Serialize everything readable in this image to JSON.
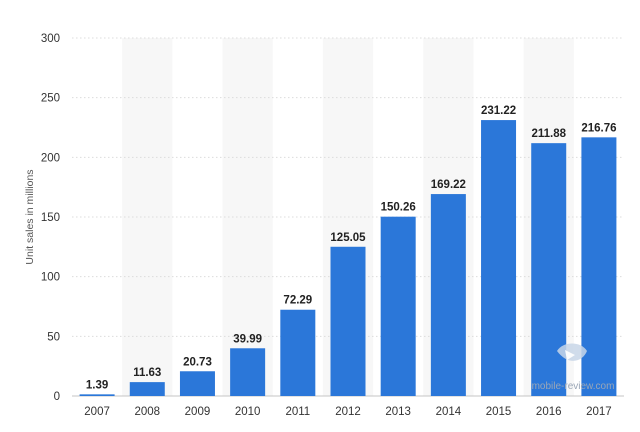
{
  "chart_data": {
    "type": "bar",
    "categories": [
      "2007",
      "2008",
      "2009",
      "2010",
      "2011",
      "2012",
      "2013",
      "2014",
      "2015",
      "2016",
      "2017"
    ],
    "values": [
      1.39,
      11.63,
      20.73,
      39.99,
      72.29,
      125.05,
      150.26,
      169.22,
      231.22,
      211.88,
      216.76
    ],
    "data_labels": [
      "1.39",
      "11.63",
      "20.73",
      "39.99",
      "72.29",
      "125.05",
      "150.26",
      "169.22",
      "231.22",
      "211.88",
      "216.76"
    ],
    "ylabel": "Unit sales in millions",
    "xlabel": "",
    "title": "",
    "ylim": [
      0,
      300
    ],
    "yticks": [
      0,
      50,
      100,
      150,
      200,
      250,
      300
    ],
    "grid": true,
    "alternating_column_bands": true,
    "bar_color": "#2b77d9",
    "band_color": "#f7f7f7",
    "grid_color": "#dcdcdc"
  },
  "watermark": {
    "text": "mobile-review.com"
  }
}
